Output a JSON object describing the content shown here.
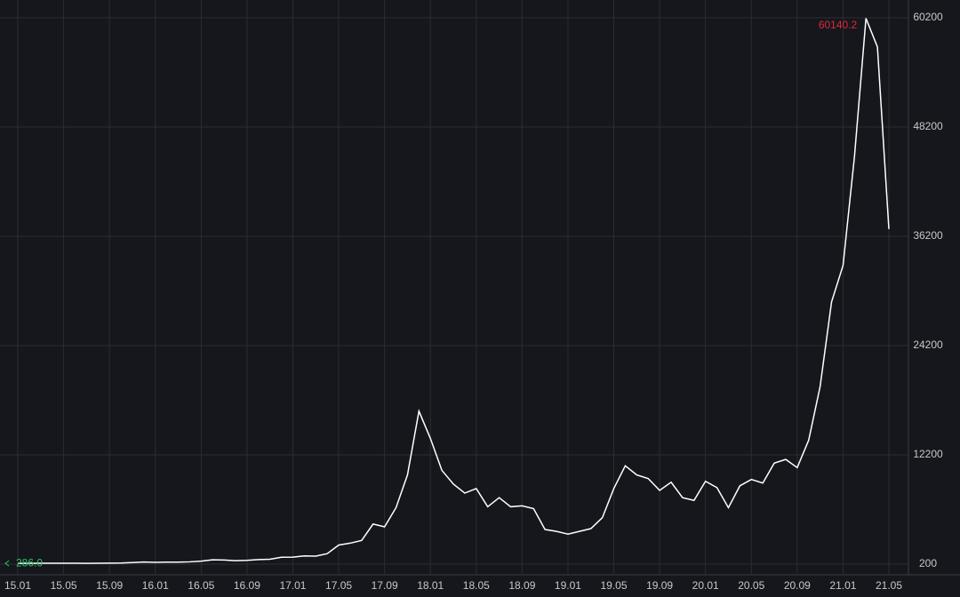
{
  "chart_data": {
    "type": "line",
    "x": [
      "15.01",
      "15.02",
      "15.03",
      "15.04",
      "15.05",
      "15.06",
      "15.07",
      "15.08",
      "15.09",
      "15.10",
      "15.11",
      "15.12",
      "16.01",
      "16.02",
      "16.03",
      "16.04",
      "16.05",
      "16.06",
      "16.07",
      "16.08",
      "16.09",
      "16.10",
      "16.11",
      "16.12",
      "17.01",
      "17.02",
      "17.03",
      "17.04",
      "17.05",
      "17.06",
      "17.07",
      "17.08",
      "17.09",
      "17.10",
      "17.11",
      "17.12",
      "18.01",
      "18.02",
      "18.03",
      "18.04",
      "18.05",
      "18.06",
      "18.07",
      "18.08",
      "18.09",
      "18.10",
      "18.11",
      "18.12",
      "19.01",
      "19.02",
      "19.03",
      "19.04",
      "19.05",
      "19.06",
      "19.07",
      "19.08",
      "19.09",
      "19.10",
      "19.11",
      "19.12",
      "20.01",
      "20.02",
      "20.03",
      "20.04",
      "20.05",
      "20.06",
      "20.07",
      "20.08",
      "20.09",
      "20.10",
      "20.11",
      "20.12",
      "21.01",
      "21.02",
      "21.03",
      "21.04",
      "21.05"
    ],
    "series": [
      {
        "color": "#ffffff",
        "values": [
          286,
          290,
          300,
          295,
          300,
          300,
          290,
          300,
          310,
          320,
          370,
          430,
          400,
          420,
          420,
          450,
          530,
          680,
          650,
          580,
          610,
          700,
          740,
          960,
          970,
          1100,
          1080,
          1350,
          2300,
          2500,
          2800,
          4600,
          4300,
          6400,
          10000,
          17000,
          14000,
          10500,
          9000,
          8000,
          8500,
          6500,
          7500,
          6500,
          6600,
          6300,
          4000,
          3800,
          3500,
          3800,
          4100,
          5300,
          8500,
          11000,
          10000,
          9600,
          8300,
          9200,
          7500,
          7200,
          9300,
          8600,
          6400,
          8800,
          9500,
          9100,
          11300,
          11700,
          10800,
          13800,
          19700,
          29000,
          33000,
          45000,
          60140.2,
          57000,
          37000
        ]
      }
    ],
    "xticks": [
      "15.01",
      "15.05",
      "15.09",
      "16.01",
      "16.05",
      "16.09",
      "17.01",
      "17.05",
      "17.09",
      "18.01",
      "18.05",
      "18.09",
      "19.01",
      "19.05",
      "19.09",
      "20.01",
      "20.05",
      "20.09",
      "21.01",
      "21.05"
    ],
    "ylim": [
      200,
      60200
    ],
    "yticks": [
      200,
      12200,
      24200,
      36200,
      48200,
      60200
    ],
    "grid": true,
    "annotations": {
      "high": {
        "value": 60140.2,
        "label": "60140.2",
        "color": "#e0283c"
      },
      "low": {
        "value": 286,
        "label": "286.0",
        "color": "#2ec26a"
      }
    }
  }
}
